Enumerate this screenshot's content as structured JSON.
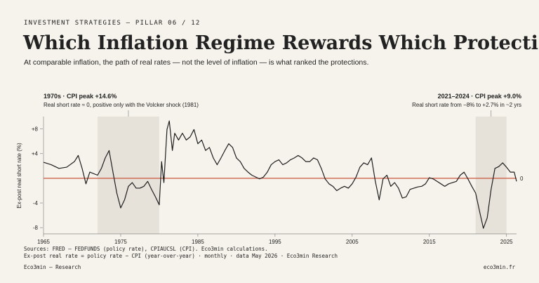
{
  "chart_data": {
    "type": "line",
    "kicker": "INVESTMENT STRATEGIES — PILLAR 06 / 12",
    "title": "Which Inflation Regime Rewards Which Protection",
    "subtitle": "At comparable inflation, the path of real rates — not the level of inflation — is what ranked the protections.",
    "y_label": "Ex-post real short rate (%)",
    "annotations": [
      {
        "title": "1970s · CPI peak +14.6%",
        "text": "Real short rate ≈ 0, positive only with the Volcker shock (1981)"
      },
      {
        "title": "2021–2024 · CPI peak +9.0%",
        "text": "Real short rate from −8% to +2.7% in ~2 yrs"
      }
    ],
    "shaded_ranges": [
      [
        1972,
        1980
      ],
      [
        2021,
        2025
      ]
    ],
    "reference_line": {
      "value": 0,
      "color": "#c8553d"
    },
    "color": "#1f1f1f",
    "xlim": [
      1965,
      2026.3
    ],
    "xticks": [
      1965,
      1975,
      1985,
      1995,
      2005,
      2015,
      2025
    ],
    "ylim": [
      -9,
      10
    ],
    "yticks": [
      {
        "value": 8,
        "label": "+8"
      },
      {
        "value": 4,
        "label": "+4"
      },
      -4,
      -8
    ],
    "x": [
      1965,
      1966,
      1967,
      1968,
      1969,
      1969.5,
      1970,
      1970.5,
      1971,
      1972,
      1972.5,
      1973,
      1973.5,
      1974,
      1974.5,
      1975,
      1975.5,
      1976,
      1976.5,
      1977,
      1977.5,
      1978,
      1978.5,
      1979,
      1979.5,
      1980,
      1980.3,
      1980.6,
      1981,
      1981.3,
      1981.7,
      1982,
      1982.5,
      1983,
      1983.5,
      1984,
      1984.5,
      1985,
      1985.5,
      1986,
      1986.5,
      1987,
      1987.5,
      1988,
      1988.5,
      1989,
      1989.5,
      1990,
      1990.5,
      1991,
      1991.5,
      1992,
      1992.5,
      1993,
      1993.5,
      1994,
      1994.5,
      1995,
      1995.5,
      1996,
      1996.5,
      1997,
      1997.5,
      1998,
      1998.5,
      1999,
      1999.5,
      2000,
      2000.5,
      2001,
      2001.5,
      2002,
      2002.5,
      2003,
      2003.5,
      2004,
      2004.5,
      2005,
      2005.5,
      2006,
      2006.5,
      2007,
      2007.5,
      2008,
      2008.5,
      2009,
      2009.5,
      2010,
      2010.5,
      2011,
      2011.5,
      2012,
      2012.5,
      2013,
      2013.5,
      2014,
      2014.5,
      2015,
      2015.5,
      2016,
      2016.5,
      2017,
      2017.5,
      2018,
      2018.5,
      2019,
      2019.5,
      2020,
      2020.5,
      2021,
      2021.5,
      2022,
      2022.5,
      2023,
      2023.5,
      2024,
      2024.5,
      2025,
      2025.5,
      2026,
      2026.3
    ],
    "values": [
      2.6,
      2.2,
      1.6,
      1.8,
      2.7,
      3.7,
      1.6,
      -0.9,
      1.0,
      0.5,
      1.6,
      3.3,
      4.5,
      1.0,
      -2.4,
      -4.8,
      -3.5,
      -1.3,
      -0.7,
      -1.6,
      -1.6,
      -1.3,
      -0.5,
      -1.8,
      -3.0,
      -4.3,
      2.7,
      -0.7,
      7.9,
      9.3,
      4.5,
      7.3,
      6.2,
      7.3,
      6.2,
      6.7,
      7.9,
      5.6,
      6.2,
      4.5,
      5.0,
      3.3,
      2.2,
      3.3,
      4.5,
      5.6,
      5.0,
      3.3,
      2.7,
      1.6,
      1.0,
      0.5,
      0.2,
      -0.1,
      0.2,
      1.0,
      2.2,
      2.7,
      3.0,
      2.2,
      2.5,
      3.0,
      3.3,
      3.7,
      3.3,
      2.7,
      2.7,
      3.3,
      3.0,
      1.6,
      -0.1,
      -0.9,
      -1.3,
      -2.0,
      -1.6,
      -1.3,
      -1.6,
      -0.9,
      0.2,
      1.8,
      2.5,
      2.2,
      3.3,
      -0.5,
      -3.5,
      -0.1,
      0.5,
      -1.3,
      -0.7,
      -1.6,
      -3.2,
      -3.0,
      -1.8,
      -1.6,
      -1.4,
      -1.3,
      -0.9,
      0.1,
      -0.1,
      -0.5,
      -0.9,
      -1.3,
      -0.9,
      -0.7,
      -0.5,
      0.5,
      1.0,
      -0.1,
      -1.3,
      -2.4,
      -5.3,
      -8.1,
      -6.4,
      -1.8,
      1.6,
      1.9,
      2.5,
      1.8,
      1.0,
      1.0,
      -0.5
    ],
    "sources": "Sources: FRED — FEDFUNDS (policy rate), CPIAUCSL (CPI). Eco3min calculations.",
    "note": "Ex-post real rate = policy rate − CPI (year-over-year) · monthly · data May 2026 · Eco3min Research",
    "footer_left": "Eco3min — Research",
    "footer_right": "eco3min.fr"
  }
}
